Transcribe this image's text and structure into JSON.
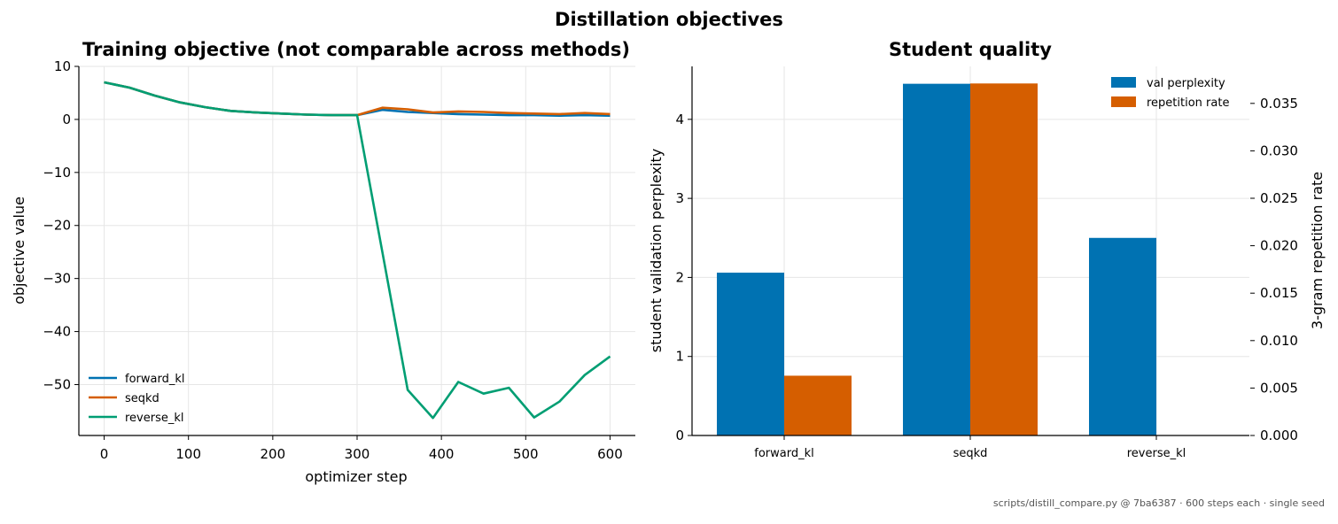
{
  "figure": {
    "title": "Distillation objectives",
    "footer": "scripts/distill_compare.py @ 7ba6387 · 600 steps each · single seed"
  },
  "chart_data": [
    {
      "type": "line",
      "title": "Training objective (not comparable across methods)",
      "xlabel": "optimizer step",
      "ylabel": "objective value",
      "xlim": [
        -30,
        630
      ],
      "ylim": [
        -59.6,
        10
      ],
      "xticks": [
        0,
        100,
        200,
        300,
        400,
        500,
        600
      ],
      "yticks": [
        10,
        0,
        -10,
        -20,
        -30,
        -40,
        -50
      ],
      "grid": true,
      "legend_position": "lower-left",
      "x": [
        0,
        30,
        60,
        90,
        120,
        150,
        180,
        210,
        240,
        270,
        300,
        330,
        360,
        390,
        420,
        450,
        480,
        510,
        540,
        570,
        600
      ],
      "series": [
        {
          "name": "forward_kl",
          "color": "#0072B2",
          "values": [
            7.0,
            6.0,
            4.5,
            3.2,
            2.3,
            1.6,
            1.3,
            1.1,
            0.9,
            0.8,
            0.8,
            1.8,
            1.4,
            1.2,
            1.0,
            0.9,
            0.8,
            0.8,
            0.7,
            0.8,
            0.7
          ]
        },
        {
          "name": "seqkd",
          "color": "#D55E00",
          "values": [
            7.0,
            6.0,
            4.5,
            3.2,
            2.3,
            1.6,
            1.3,
            1.1,
            0.9,
            0.8,
            0.8,
            2.2,
            1.9,
            1.3,
            1.5,
            1.4,
            1.2,
            1.1,
            1.0,
            1.2,
            1.0
          ]
        },
        {
          "name": "reverse_kl",
          "color": "#009E73",
          "values": [
            7.0,
            6.0,
            4.5,
            3.2,
            2.3,
            1.6,
            1.3,
            1.1,
            0.9,
            0.8,
            0.8,
            -25.0,
            -51.0,
            -56.3,
            -49.5,
            -51.7,
            -50.6,
            -56.2,
            -53.2,
            -48.2,
            -44.7
          ]
        }
      ]
    },
    {
      "type": "bar",
      "title": "Student quality",
      "categories": [
        "forward_kl",
        "seqkd",
        "reverse_kl"
      ],
      "ylabel": "student validation perplexity",
      "y2label": "3-gram repetition rate",
      "ylim": [
        0,
        4.67
      ],
      "y2lim": [
        0,
        0.0389
      ],
      "yticks": [
        0,
        1,
        2,
        3,
        4
      ],
      "y2ticks": [
        "0.000",
        "0.005",
        "0.010",
        "0.015",
        "0.020",
        "0.025",
        "0.030",
        "0.035"
      ],
      "grid": true,
      "legend_position": "top-right",
      "series": [
        {
          "name": "val perplexity",
          "axis": "left",
          "color": "#0072B2",
          "values": [
            2.06,
            4.45,
            2.5
          ]
        },
        {
          "name": "repetition rate",
          "axis": "right",
          "color": "#D55E00",
          "values": [
            0.0063,
            0.0371,
            0.0
          ]
        }
      ]
    }
  ]
}
